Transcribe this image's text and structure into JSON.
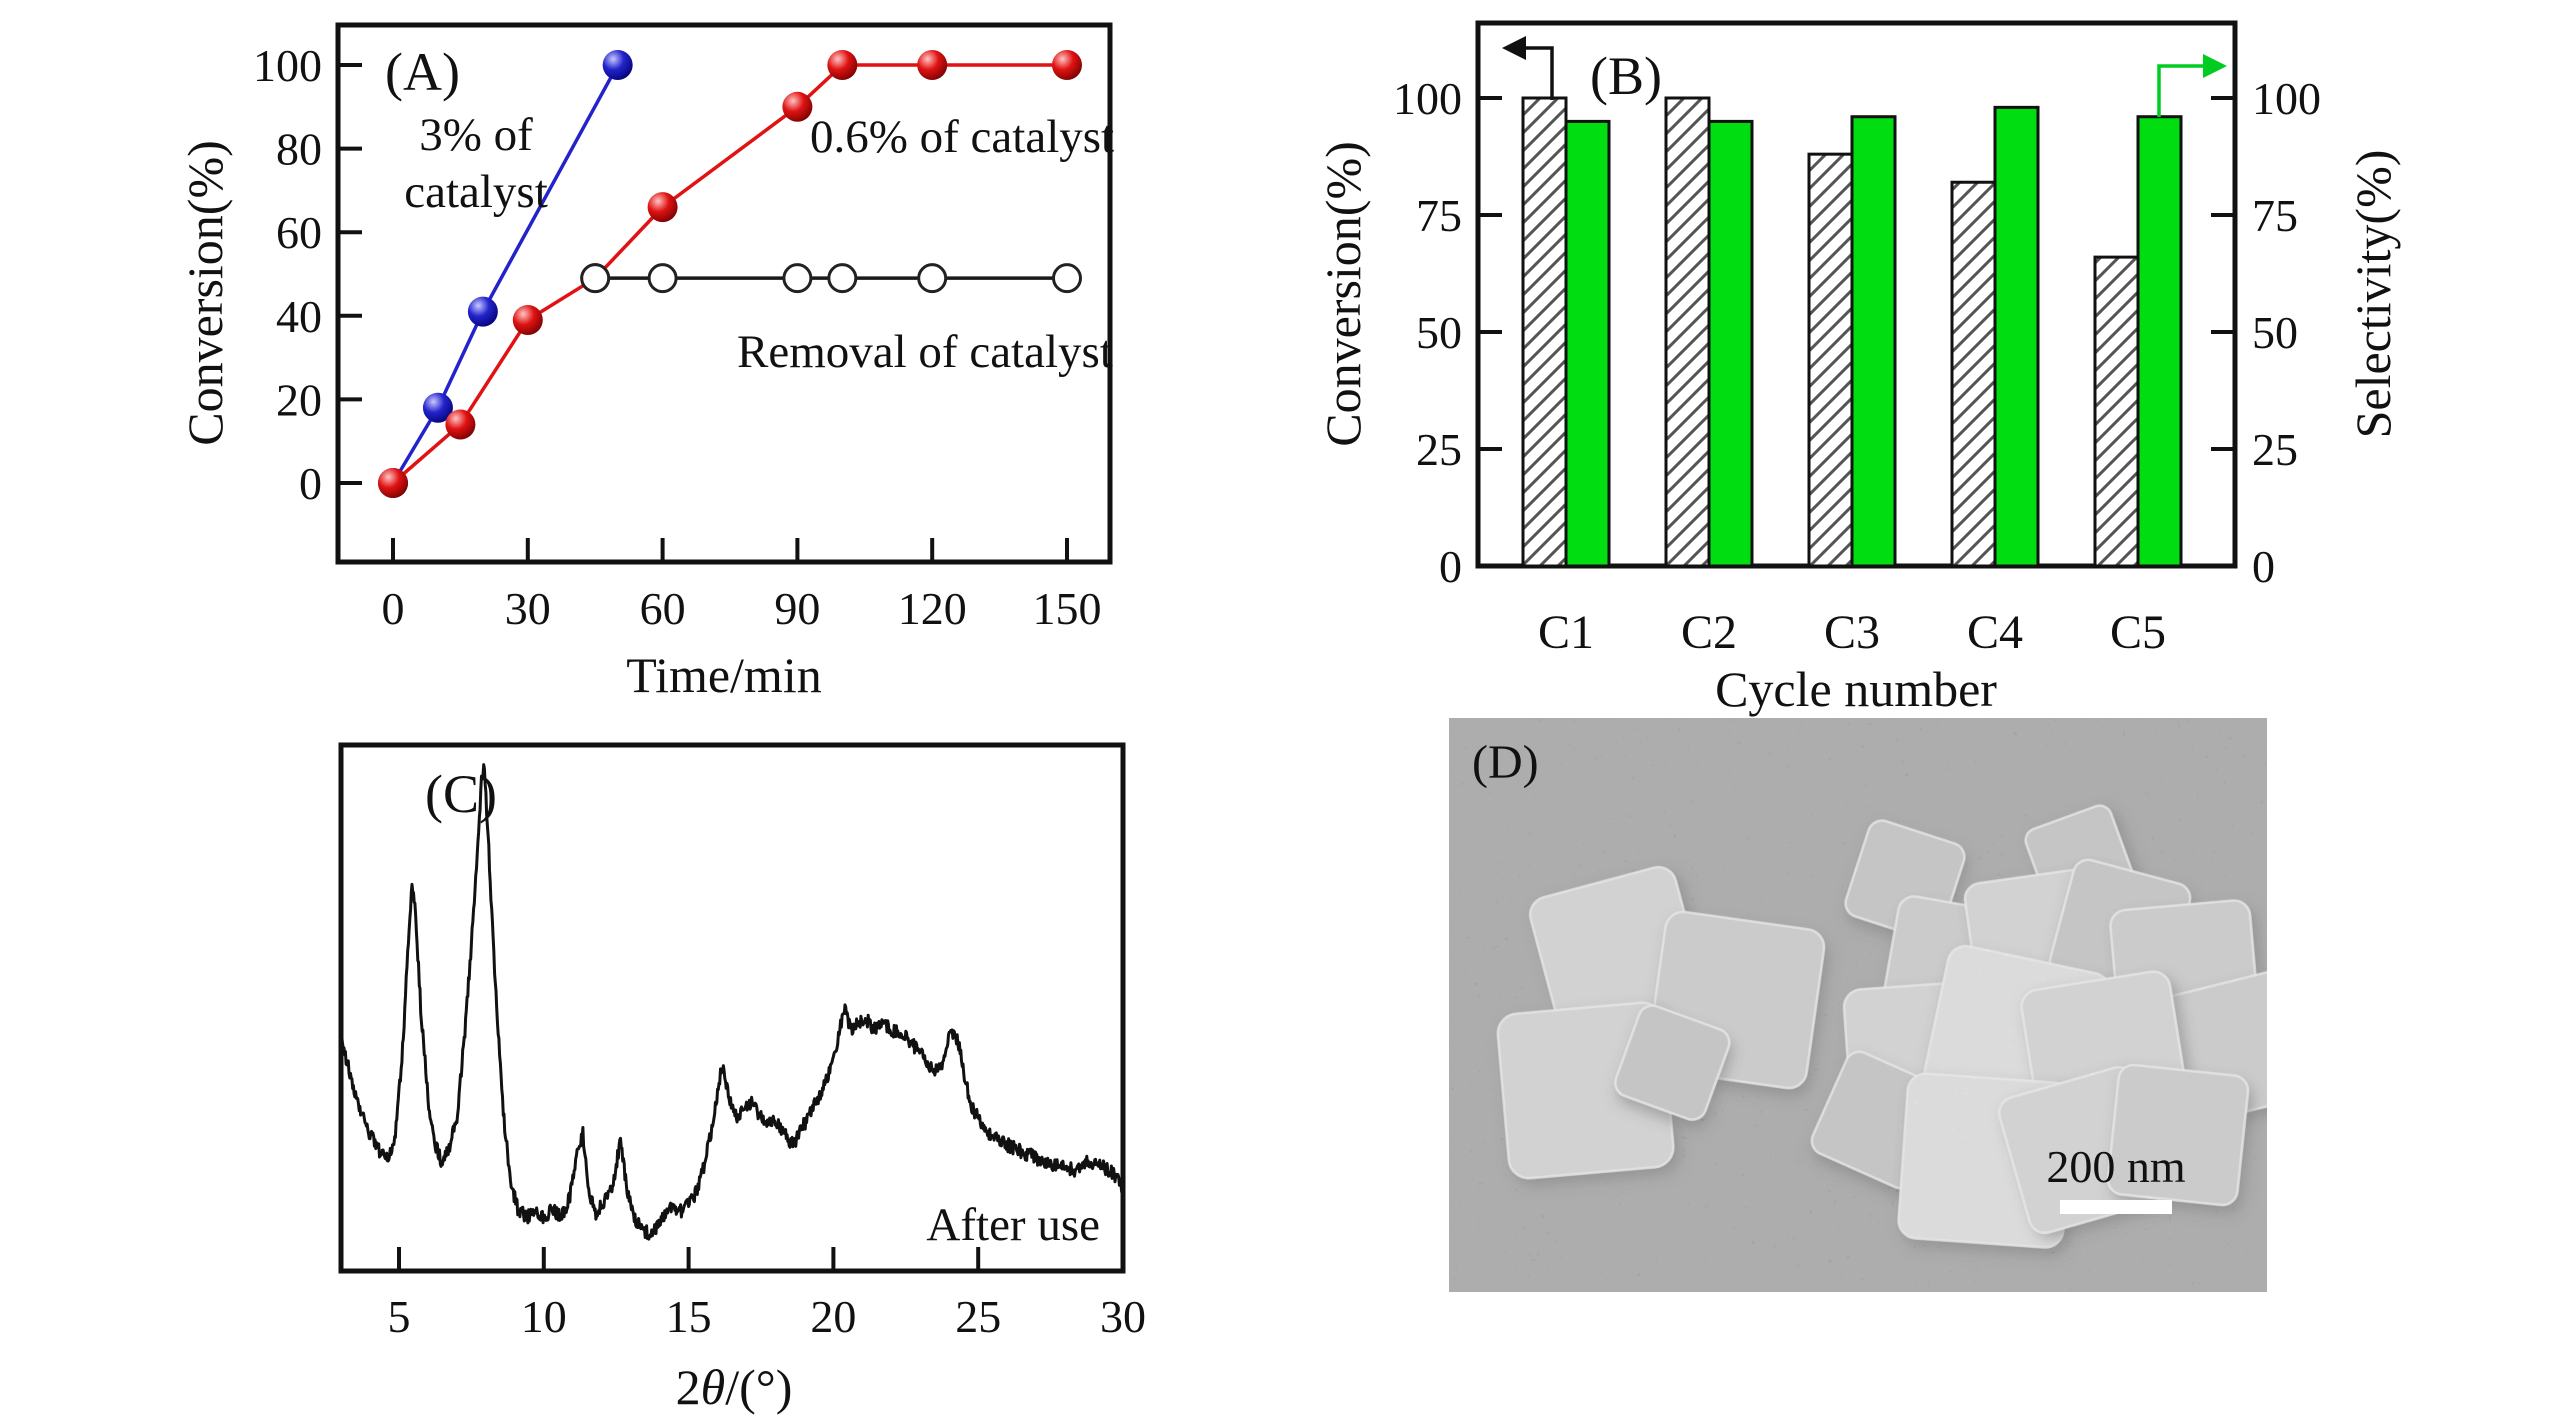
{
  "figure_title": "Four-panel catalysis figure",
  "colors": {
    "blue": "#2323cc",
    "red": "#e01212",
    "green_bar": "#00dd11",
    "green_arrow": "#00cc22",
    "black": "#111111",
    "sem_background": "#8c8c8c"
  },
  "chart_data": [
    {
      "panel": "(A)",
      "type": "line",
      "xlabel": "Time/min",
      "ylabel": "Conversion(%)",
      "x_ticks": [
        0,
        30,
        60,
        90,
        120,
        150
      ],
      "y_ticks": [
        0,
        20,
        40,
        60,
        80,
        100
      ],
      "xlim": [
        -12,
        158
      ],
      "ylim": [
        -19,
        110
      ],
      "grid": false,
      "series": [
        {
          "name": "3% of catalyst",
          "color": "#2323cc",
          "marker": "sphere",
          "gradient": "blue",
          "points": [
            [
              0,
              0
            ],
            [
              10,
              18
            ],
            [
              20,
              41
            ],
            [
              50,
              100
            ]
          ]
        },
        {
          "name": "0.6% of catalyst",
          "color": "#e01212",
          "marker": "sphere",
          "gradient": "red",
          "points": [
            [
              0,
              0
            ],
            [
              15,
              14
            ],
            [
              30,
              39
            ],
            [
              45,
              49
            ],
            [
              60,
              66
            ],
            [
              90,
              90
            ],
            [
              100,
              100
            ],
            [
              120,
              100
            ],
            [
              150,
              100
            ]
          ]
        },
        {
          "name": "Removal of catalyst",
          "color": "#1a1a1a",
          "marker": "open-circle",
          "gradient": "none",
          "points": [
            [
              45,
              49
            ],
            [
              60,
              49
            ],
            [
              90,
              49
            ],
            [
              100,
              49
            ],
            [
              120,
              49
            ],
            [
              150,
              49
            ]
          ]
        }
      ],
      "annotations": {
        "blue_line1": "3% of",
        "blue_line2": "catalyst",
        "red": "0.6% of catalyst",
        "black": "Removal of catalyst"
      }
    },
    {
      "panel": "(B)",
      "type": "bar",
      "xlabel": "Cycle number",
      "ylabel_left": "Conversion(%)",
      "ylabel_right": "Selectivity(%)",
      "categories": [
        "C1",
        "C2",
        "C3",
        "C4",
        "C5"
      ],
      "series": [
        {
          "name": "Conversion",
          "style": "hatched",
          "axis": "left",
          "values": [
            100,
            100,
            88,
            82,
            66
          ]
        },
        {
          "name": "Selectivity",
          "style": "solid-green",
          "axis": "right",
          "values": [
            95,
            95,
            96,
            98,
            96
          ]
        }
      ],
      "y_ticks": [
        0,
        25,
        50,
        75,
        100
      ],
      "ylim": [
        0,
        116
      ],
      "zero_label": "0",
      "left_axis_arrow": "points-left",
      "right_axis_arrow": "points-right"
    },
    {
      "panel": "(C)",
      "type": "line",
      "xlabel": "2θ/(°)",
      "xlabel_parts": [
        "2",
        "θ",
        "/(°)"
      ],
      "annotation": "After use",
      "x_ticks": [
        5,
        10,
        15,
        20,
        25,
        30
      ],
      "xlim": [
        3,
        30
      ],
      "ylabel": "",
      "profile_units": "relative intensity 0-100",
      "profile": [
        [
          3.0,
          44
        ],
        [
          3.2,
          40
        ],
        [
          3.5,
          33
        ],
        [
          3.9,
          27
        ],
        [
          4.3,
          23
        ],
        [
          4.6,
          21
        ],
        [
          4.85,
          25
        ],
        [
          5.1,
          40
        ],
        [
          5.3,
          60
        ],
        [
          5.45,
          74
        ],
        [
          5.55,
          70
        ],
        [
          5.75,
          50
        ],
        [
          6.0,
          33
        ],
        [
          6.2,
          25
        ],
        [
          6.45,
          21
        ],
        [
          6.7,
          23
        ],
        [
          7.0,
          29
        ],
        [
          7.3,
          47
        ],
        [
          7.6,
          70
        ],
        [
          7.85,
          93
        ],
        [
          7.95,
          96
        ],
        [
          8.1,
          80
        ],
        [
          8.35,
          52
        ],
        [
          8.6,
          30
        ],
        [
          8.85,
          17
        ],
        [
          9.1,
          12
        ],
        [
          9.4,
          10
        ],
        [
          9.7,
          12
        ],
        [
          10.0,
          10
        ],
        [
          10.3,
          12
        ],
        [
          10.6,
          10
        ],
        [
          10.9,
          14
        ],
        [
          11.2,
          24
        ],
        [
          11.35,
          26
        ],
        [
          11.55,
          15
        ],
        [
          11.8,
          11
        ],
        [
          12.1,
          13
        ],
        [
          12.4,
          17
        ],
        [
          12.65,
          25
        ],
        [
          12.85,
          16
        ],
        [
          13.1,
          10
        ],
        [
          13.4,
          8
        ],
        [
          13.7,
          7
        ],
        [
          14.0,
          9
        ],
        [
          14.3,
          12
        ],
        [
          14.6,
          11
        ],
        [
          14.9,
          12
        ],
        [
          15.2,
          14
        ],
        [
          15.55,
          20
        ],
        [
          15.9,
          30
        ],
        [
          16.15,
          39
        ],
        [
          16.4,
          33
        ],
        [
          16.65,
          29
        ],
        [
          16.9,
          31
        ],
        [
          17.15,
          32
        ],
        [
          17.4,
          30
        ],
        [
          17.7,
          28
        ],
        [
          18.0,
          29
        ],
        [
          18.3,
          26
        ],
        [
          18.6,
          24
        ],
        [
          18.9,
          27
        ],
        [
          19.2,
          30
        ],
        [
          19.5,
          33
        ],
        [
          19.8,
          37
        ],
        [
          20.1,
          43
        ],
        [
          20.4,
          50
        ],
        [
          20.6,
          46
        ],
        [
          20.85,
          47
        ],
        [
          21.1,
          48
        ],
        [
          21.4,
          46
        ],
        [
          21.7,
          47
        ],
        [
          22.0,
          46
        ],
        [
          22.3,
          45
        ],
        [
          22.6,
          44
        ],
        [
          22.9,
          42
        ],
        [
          23.2,
          40
        ],
        [
          23.5,
          38
        ],
        [
          23.8,
          40
        ],
        [
          24.05,
          46
        ],
        [
          24.3,
          44
        ],
        [
          24.55,
          36
        ],
        [
          24.8,
          31
        ],
        [
          25.1,
          28
        ],
        [
          25.4,
          26
        ],
        [
          25.7,
          25
        ],
        [
          26.0,
          24
        ],
        [
          26.4,
          23
        ],
        [
          26.8,
          22
        ],
        [
          27.2,
          21
        ],
        [
          27.6,
          20
        ],
        [
          28.0,
          20
        ],
        [
          28.4,
          19
        ],
        [
          28.8,
          21
        ],
        [
          29.2,
          20
        ],
        [
          29.6,
          19
        ],
        [
          30.0,
          16
        ]
      ]
    },
    {
      "panel": "(D)",
      "type": "image",
      "content": "SEM micrograph of aggregated cube-shaped nanocrystals",
      "scale_bar": "200 nm"
    }
  ]
}
